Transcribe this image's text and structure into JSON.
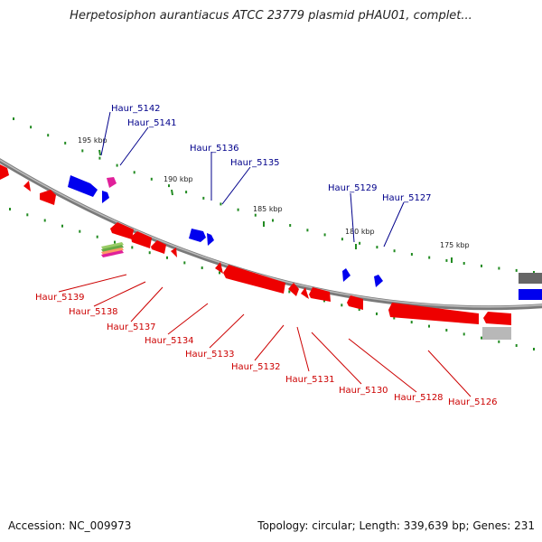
{
  "title": "Herpetosiphon aurantiacus ATCC 23779 plasmid pHAU01, complet...",
  "footer": {
    "accession": "Accession: NC_009973",
    "info": "Topology: circular; Length: 339,639 bp; Genes: 231"
  },
  "colors": {
    "forward_strand": "#0000ee",
    "reverse_strand": "#ee0000",
    "backbone": "#888888",
    "tick": "#228b22",
    "forward_label": "#00008b",
    "reverse_label": "#cc0000"
  },
  "ticks": [
    "195 kbp",
    "190 kbp",
    "185 kbp",
    "180 kbp",
    "175 kbp"
  ],
  "genes_forward": [
    "Haur_5142",
    "Haur_5141",
    "Haur_5136",
    "Haur_5135",
    "Haur_5129",
    "Haur_5127"
  ],
  "genes_reverse": [
    "Haur_5139",
    "Haur_5138",
    "Haur_5137",
    "Haur_5134",
    "Haur_5133",
    "Haur_5132",
    "Haur_5131",
    "Haur_5130",
    "Haur_5128",
    "Haur_5126"
  ]
}
